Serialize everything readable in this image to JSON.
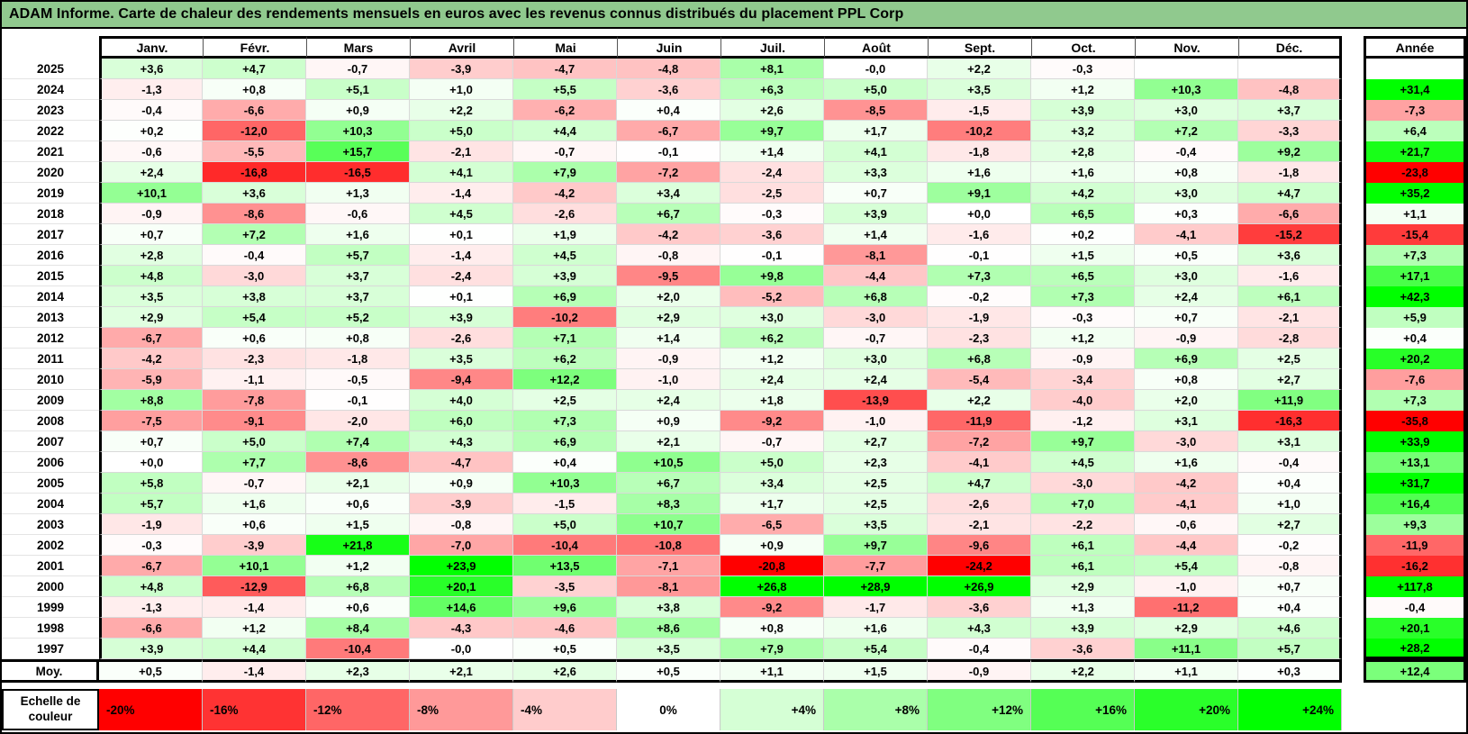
{
  "chart_data": {
    "type": "heatmap",
    "title": "ADAM Informe. Carte de chaleur des rendements mensuels en euros avec les revenus connus distribués du placement PPL Corp",
    "unit": "%",
    "columns": [
      "Janv.",
      "Févr.",
      "Mars",
      "Avril",
      "Mai",
      "Juin",
      "Juil.",
      "Août",
      "Sept.",
      "Oct.",
      "Nov.",
      "Déc."
    ],
    "annual_label": "Année",
    "avg_label": "Moy.",
    "years": [
      "2025",
      "2024",
      "2023",
      "2022",
      "2021",
      "2020",
      "2019",
      "2018",
      "2017",
      "2016",
      "2015",
      "2014",
      "2013",
      "2012",
      "2011",
      "2010",
      "2009",
      "2008",
      "2007",
      "2006",
      "2005",
      "2004",
      "2003",
      "2002",
      "2001",
      "2000",
      "1999",
      "1998",
      "1997"
    ],
    "values": [
      [
        "+3,6",
        "+4,7",
        "-0,7",
        "-3,9",
        "-4,7",
        "-4,8",
        "+8,1",
        "-0,0",
        "+2,2",
        "-0,3",
        "",
        ""
      ],
      [
        "-1,3",
        "+0,8",
        "+5,1",
        "+1,0",
        "+5,5",
        "-3,6",
        "+6,3",
        "+5,0",
        "+3,5",
        "+1,2",
        "+10,3",
        "-4,8"
      ],
      [
        "-0,4",
        "-6,6",
        "+0,9",
        "+2,2",
        "-6,2",
        "+0,4",
        "+2,6",
        "-8,5",
        "-1,5",
        "+3,9",
        "+3,0",
        "+3,7"
      ],
      [
        "+0,2",
        "-12,0",
        "+10,3",
        "+5,0",
        "+4,4",
        "-6,7",
        "+9,7",
        "+1,7",
        "-10,2",
        "+3,2",
        "+7,2",
        "-3,3"
      ],
      [
        "-0,6",
        "-5,5",
        "+15,7",
        "-2,1",
        "-0,7",
        "-0,1",
        "+1,4",
        "+4,1",
        "-1,8",
        "+2,8",
        "-0,4",
        "+9,2"
      ],
      [
        "+2,4",
        "-16,8",
        "-16,5",
        "+4,1",
        "+7,9",
        "-7,2",
        "-2,4",
        "+3,3",
        "+1,6",
        "+1,6",
        "+0,8",
        "-1,8"
      ],
      [
        "+10,1",
        "+3,6",
        "+1,3",
        "-1,4",
        "-4,2",
        "+3,4",
        "-2,5",
        "+0,7",
        "+9,1",
        "+4,2",
        "+3,0",
        "+4,7"
      ],
      [
        "-0,9",
        "-8,6",
        "-0,6",
        "+4,5",
        "-2,6",
        "+6,7",
        "-0,3",
        "+3,9",
        "+0,0",
        "+6,5",
        "+0,3",
        "-6,6"
      ],
      [
        "+0,7",
        "+7,2",
        "+1,6",
        "+0,1",
        "+1,9",
        "-4,2",
        "-3,6",
        "+1,4",
        "-1,6",
        "+0,2",
        "-4,1",
        "-15,2"
      ],
      [
        "+2,8",
        "-0,4",
        "+5,7",
        "-1,4",
        "+4,5",
        "-0,8",
        "-0,1",
        "-8,1",
        "-0,1",
        "+1,5",
        "+0,5",
        "+3,6"
      ],
      [
        "+4,8",
        "-3,0",
        "+3,7",
        "-2,4",
        "+3,9",
        "-9,5",
        "+9,8",
        "-4,4",
        "+7,3",
        "+6,5",
        "+3,0",
        "-1,6"
      ],
      [
        "+3,5",
        "+3,8",
        "+3,7",
        "+0,1",
        "+6,9",
        "+2,0",
        "-5,2",
        "+6,8",
        "-0,2",
        "+7,3",
        "+2,4",
        "+6,1"
      ],
      [
        "+2,9",
        "+5,4",
        "+5,2",
        "+3,9",
        "-10,2",
        "+2,9",
        "+3,0",
        "-3,0",
        "-1,9",
        "-0,3",
        "+0,7",
        "-2,1"
      ],
      [
        "-6,7",
        "+0,6",
        "+0,8",
        "-2,6",
        "+7,1",
        "+1,4",
        "+6,2",
        "-0,7",
        "-2,3",
        "+1,2",
        "-0,9",
        "-2,8"
      ],
      [
        "-4,2",
        "-2,3",
        "-1,8",
        "+3,5",
        "+6,2",
        "-0,9",
        "+1,2",
        "+3,0",
        "+6,8",
        "-0,9",
        "+6,9",
        "+2,5"
      ],
      [
        "-5,9",
        "-1,1",
        "-0,5",
        "-9,4",
        "+12,2",
        "-1,0",
        "+2,4",
        "+2,4",
        "-5,4",
        "-3,4",
        "+0,8",
        "+2,7"
      ],
      [
        "+8,8",
        "-7,8",
        "-0,1",
        "+4,0",
        "+2,5",
        "+2,4",
        "+1,8",
        "-13,9",
        "+2,2",
        "-4,0",
        "+2,0",
        "+11,9"
      ],
      [
        "-7,5",
        "-9,1",
        "-2,0",
        "+6,0",
        "+7,3",
        "+0,9",
        "-9,2",
        "-1,0",
        "-11,9",
        "-1,2",
        "+3,1",
        "-16,3"
      ],
      [
        "+0,7",
        "+5,0",
        "+7,4",
        "+4,3",
        "+6,9",
        "+2,1",
        "-0,7",
        "+2,7",
        "-7,2",
        "+9,7",
        "-3,0",
        "+3,1"
      ],
      [
        "+0,0",
        "+7,7",
        "-8,6",
        "-4,7",
        "+0,4",
        "+10,5",
        "+5,0",
        "+2,3",
        "-4,1",
        "+4,5",
        "+1,6",
        "-0,4"
      ],
      [
        "+5,8",
        "-0,7",
        "+2,1",
        "+0,9",
        "+10,3",
        "+6,7",
        "+3,4",
        "+2,5",
        "+4,7",
        "-3,0",
        "-4,2",
        "+0,4"
      ],
      [
        "+5,7",
        "+1,6",
        "+0,6",
        "-3,9",
        "-1,5",
        "+8,3",
        "+1,7",
        "+2,5",
        "-2,6",
        "+7,0",
        "-4,1",
        "+1,0"
      ],
      [
        "-1,9",
        "+0,6",
        "+1,5",
        "-0,8",
        "+5,0",
        "+10,7",
        "-6,5",
        "+3,5",
        "-2,1",
        "-2,2",
        "-0,6",
        "+2,7"
      ],
      [
        "-0,3",
        "-3,9",
        "+21,8",
        "-7,0",
        "-10,4",
        "-10,8",
        "+0,9",
        "+9,7",
        "-9,6",
        "+6,1",
        "-4,4",
        "-0,2"
      ],
      [
        "-6,7",
        "+10,1",
        "+1,2",
        "+23,9",
        "+13,5",
        "-7,1",
        "-20,8",
        "-7,7",
        "-24,2",
        "+6,1",
        "+5,4",
        "-0,8"
      ],
      [
        "+4,8",
        "-12,9",
        "+6,8",
        "+20,1",
        "-3,5",
        "-8,1",
        "+26,8",
        "+28,9",
        "+26,9",
        "+2,9",
        "-1,0",
        "+0,7"
      ],
      [
        "-1,3",
        "-1,4",
        "+0,6",
        "+14,6",
        "+9,6",
        "+3,8",
        "-9,2",
        "-1,7",
        "-3,6",
        "+1,3",
        "-11,2",
        "+0,4"
      ],
      [
        "-6,6",
        "+1,2",
        "+8,4",
        "-4,3",
        "-4,6",
        "+8,6",
        "+0,8",
        "+1,6",
        "+4,3",
        "+3,9",
        "+2,9",
        "+4,6"
      ],
      [
        "+3,9",
        "+4,4",
        "-10,4",
        "-0,0",
        "+0,5",
        "+3,5",
        "+7,9",
        "+5,4",
        "-0,4",
        "-3,6",
        "+11,1",
        "+5,7"
      ]
    ],
    "annual": [
      "",
      "+31,4",
      "-7,3",
      "+6,4",
      "+21,7",
      "-23,8",
      "+35,2",
      "+1,1",
      "-15,4",
      "+7,3",
      "+17,1",
      "+42,3",
      "+5,9",
      "+0,4",
      "+20,2",
      "-7,6",
      "+7,3",
      "-35,8",
      "+33,9",
      "+13,1",
      "+31,7",
      "+16,4",
      "+9,3",
      "-11,9",
      "-16,2",
      "+117,8",
      "-0,4",
      "+20,1",
      "+28,2"
    ],
    "avg_values": [
      "+0,5",
      "-1,4",
      "+2,3",
      "+2,1",
      "+2,6",
      "+0,5",
      "+1,1",
      "+1,5",
      "-0,9",
      "+2,2",
      "+1,1",
      "+0,3"
    ],
    "avg_annual": "+12,4",
    "color_scale": {
      "negative_max": -20,
      "positive_max": 24,
      "min_color": "#ff0000",
      "zero_color": "#ffffff",
      "max_color": "#00ff00"
    }
  },
  "legend": {
    "label_line1": "Echelle de",
    "label_line2": "couleur",
    "stops": [
      "-20%",
      "-16%",
      "-12%",
      "-8%",
      "-4%",
      "0%",
      "+4%",
      "+8%",
      "+12%",
      "+16%",
      "+20%",
      "+24%"
    ],
    "stop_values": [
      -20,
      -16,
      -12,
      -8,
      -4,
      0,
      4,
      8,
      12,
      16,
      20,
      24
    ]
  },
  "colors": {
    "title_bg": "#90c98e",
    "border": "#000000",
    "gridline": "#d9d9d9"
  }
}
